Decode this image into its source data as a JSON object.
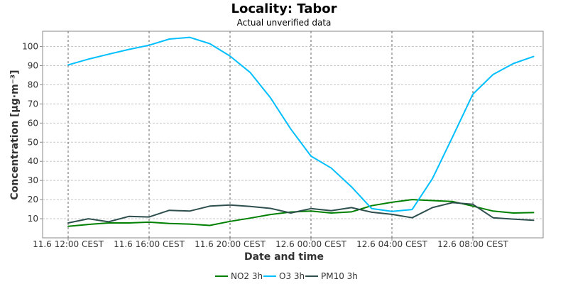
{
  "chart_data": {
    "type": "line",
    "title": "Locality: Tabor",
    "subtitle": "Actual unverified data",
    "xlabel": "Date and time",
    "ylabel": "Concentration [µg·m⁻³]",
    "x": [
      "11.6 12:00",
      "11.6 13:00",
      "11.6 14:00",
      "11.6 15:00",
      "11.6 16:00",
      "11.6 17:00",
      "11.6 18:00",
      "11.6 19:00",
      "11.6 20:00",
      "11.6 21:00",
      "11.6 22:00",
      "11.6 23:00",
      "12.6 00:00",
      "12.6 01:00",
      "12.6 02:00",
      "12.6 03:00",
      "12.6 04:00",
      "12.6 05:00",
      "12.6 06:00",
      "12.6 07:00",
      "12.6 08:00",
      "12.6 09:00",
      "12.6 10:00",
      "12.6 11:00"
    ],
    "xticks": [
      {
        "index": 0,
        "label": "11.6 12:00 CEST"
      },
      {
        "index": 4,
        "label": "11.6 16:00 CEST"
      },
      {
        "index": 8,
        "label": "11.6 20:00 CEST"
      },
      {
        "index": 12,
        "label": "12.6 00:00 CEST"
      },
      {
        "index": 16,
        "label": "12.6 04:00 CEST"
      },
      {
        "index": 20,
        "label": "12.6 08:00 CEST"
      }
    ],
    "ylim": [
      0,
      108
    ],
    "yticks": [
      10,
      20,
      30,
      40,
      50,
      60,
      70,
      80,
      90,
      100
    ],
    "grid": true,
    "legend_position": "bottom",
    "series": [
      {
        "name": "NO2 3h",
        "color": "#008000",
        "values": [
          6,
          7,
          7.8,
          7.8,
          8.2,
          7.5,
          7.2,
          6.5,
          8.6,
          10.3,
          12.2,
          13.5,
          14,
          13,
          13.6,
          16.8,
          18.6,
          20,
          19.5,
          19,
          16.6,
          14,
          13,
          13.2
        ]
      },
      {
        "name": "O3 3h",
        "color": "#00bfff",
        "values": [
          90.4,
          93.4,
          96,
          98.5,
          100.7,
          103.9,
          104.8,
          101.5,
          95,
          86.4,
          73.2,
          56.9,
          42.7,
          36.5,
          26.7,
          15.3,
          13.8,
          14.8,
          30.9,
          52.8,
          75.1,
          85.4,
          91.1,
          94.8
        ]
      },
      {
        "name": "PM10 3h",
        "color": "#2f4f4f",
        "values": [
          7.8,
          10,
          8.4,
          11.2,
          10.9,
          14.4,
          14,
          16.6,
          17.2,
          16.4,
          15.4,
          13,
          15.3,
          14.2,
          15.8,
          13.4,
          12.3,
          10.5,
          15.8,
          18.4,
          17.5,
          10.5,
          9.8,
          9.2
        ]
      }
    ]
  }
}
